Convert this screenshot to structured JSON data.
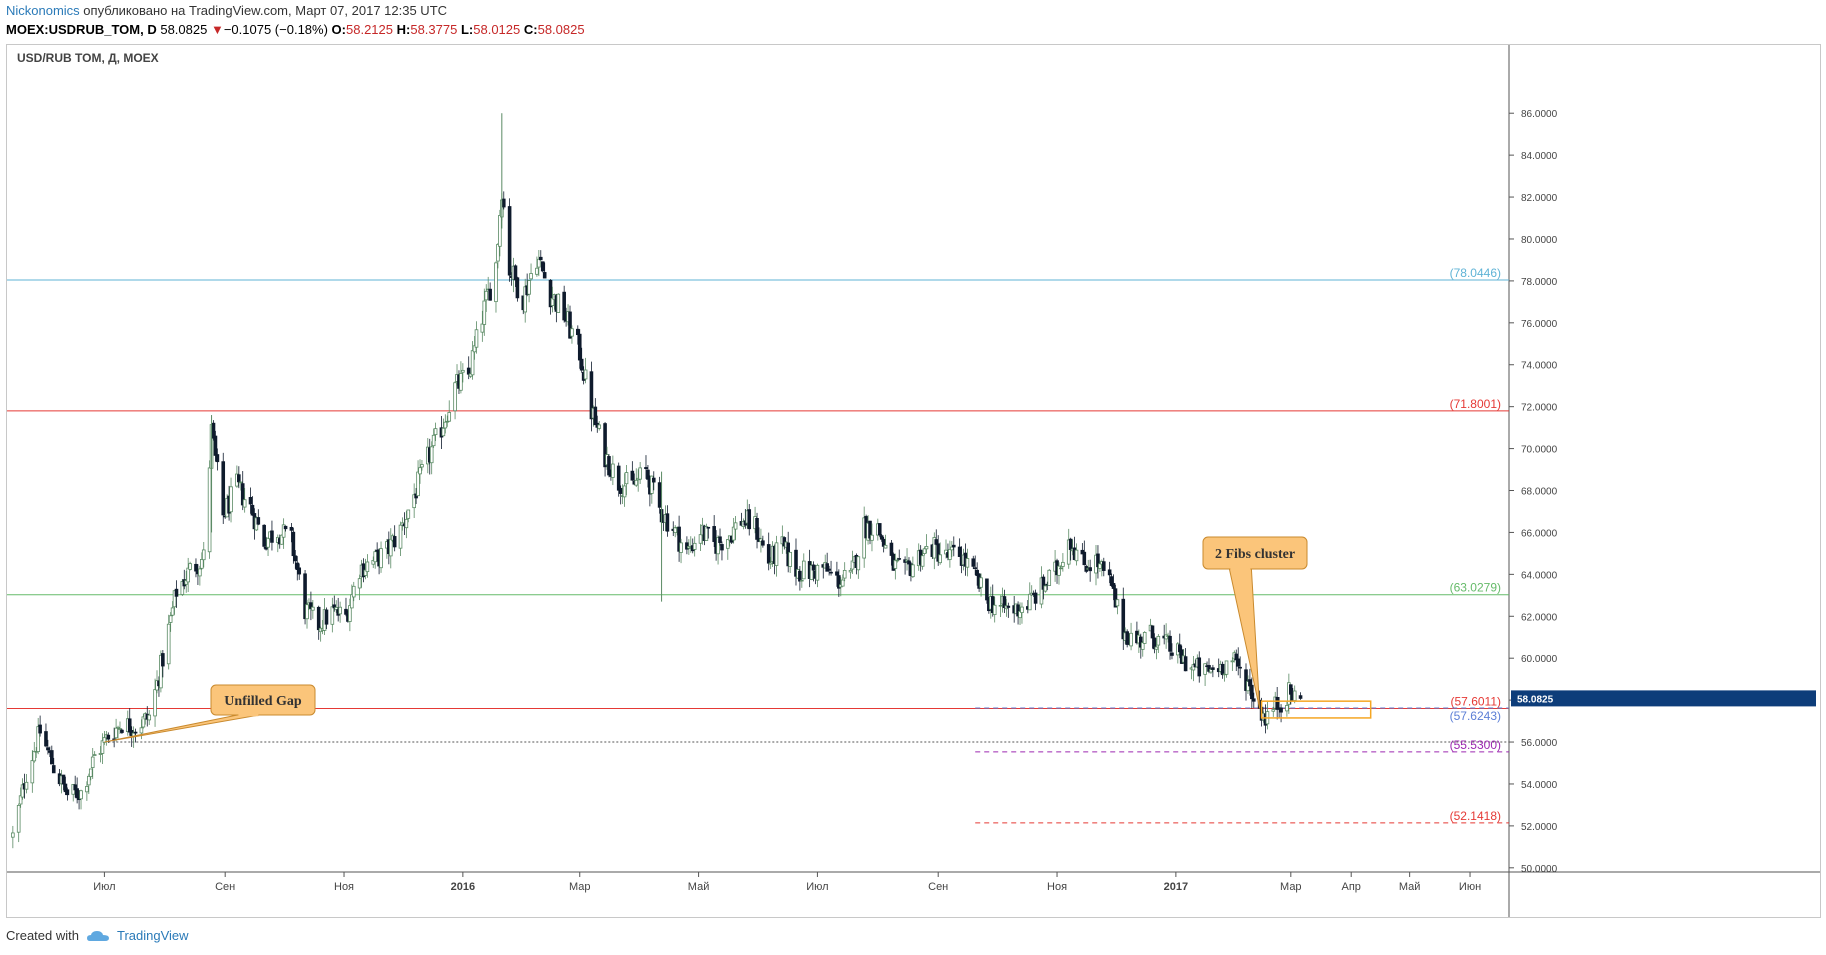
{
  "header": {
    "author": "Nickonomics",
    "published_text": " опубликовано на TradingView.com, Март 07, 2017 12:35 UTC",
    "symbol": "MOEX:USDRUB_TOM, D",
    "price": "58.0825",
    "change": "−0.1075 (−0.18%)",
    "o_label": "O:",
    "o_value": "58.2125",
    "h_label": "H:",
    "h_value": "58.3775",
    "l_label": "L:",
    "l_value": "58.0125",
    "c_label": "C:",
    "c_value": "58.0825",
    "arrow": "▼"
  },
  "footer": {
    "created_with": "Created with",
    "brand": "TradingView"
  },
  "chart_data": {
    "type": "candlestick",
    "title": "USD/RUB TOM, Д, MOEX",
    "y_axis_side": "right",
    "ylim": [
      49.8,
      88.3
    ],
    "y_ticks": [
      "50.0000",
      "52.0000",
      "54.0000",
      "56.0000",
      "58.0000",
      "60.0000",
      "62.0000",
      "64.0000",
      "66.0000",
      "68.0000",
      "70.0000",
      "72.0000",
      "74.0000",
      "76.0000",
      "78.0000",
      "80.0000",
      "82.0000",
      "84.0000",
      "86.0000"
    ],
    "x_ticks": [
      {
        "label": "Июл",
        "date": "2015-07-01",
        "bold": false
      },
      {
        "label": "Сен",
        "date": "2015-09-01",
        "bold": false
      },
      {
        "label": "Ноя",
        "date": "2015-11-01",
        "bold": false
      },
      {
        "label": "2016",
        "date": "2016-01-01",
        "bold": true
      },
      {
        "label": "Мар",
        "date": "2016-03-01",
        "bold": false
      },
      {
        "label": "Май",
        "date": "2016-05-01",
        "bold": false
      },
      {
        "label": "Июл",
        "date": "2016-07-01",
        "bold": false
      },
      {
        "label": "Сен",
        "date": "2016-09-01",
        "bold": false
      },
      {
        "label": "Ноя",
        "date": "2016-11-01",
        "bold": false
      },
      {
        "label": "2017",
        "date": "2017-01-01",
        "bold": true
      },
      {
        "label": "Мар",
        "date": "2017-03-01",
        "bold": false
      },
      {
        "label": "Апр",
        "date": "2017-04-01",
        "bold": false
      },
      {
        "label": "Май",
        "date": "2017-05-01",
        "bold": false
      },
      {
        "label": "Июн",
        "date": "2017-06-01",
        "bold": false
      }
    ],
    "last_price": {
      "value": 58.0825,
      "label": "58.0825",
      "color": "#0d3d7a"
    },
    "close_path": [
      {
        "date": "2015-05-15",
        "close": 51.5
      },
      {
        "date": "2015-05-22",
        "close": 54.5
      },
      {
        "date": "2015-05-29",
        "close": 56.5
      },
      {
        "date": "2015-06-05",
        "close": 54.8
      },
      {
        "date": "2015-06-12",
        "close": 53.5
      },
      {
        "date": "2015-06-19",
        "close": 53.6
      },
      {
        "date": "2015-06-26",
        "close": 55.3
      },
      {
        "date": "2015-07-03",
        "close": 56.3
      },
      {
        "date": "2015-07-10",
        "close": 56.9
      },
      {
        "date": "2015-07-17",
        "close": 56.7
      },
      {
        "date": "2015-07-24",
        "close": 57.2
      },
      {
        "date": "2015-07-31",
        "close": 60.0
      },
      {
        "date": "2015-08-07",
        "close": 63.2
      },
      {
        "date": "2015-08-14",
        "close": 64.2
      },
      {
        "date": "2015-08-21",
        "close": 64.8
      },
      {
        "date": "2015-08-25",
        "close": 70.8
      },
      {
        "date": "2015-08-31",
        "close": 66.8
      },
      {
        "date": "2015-09-07",
        "close": 68.2
      },
      {
        "date": "2015-09-14",
        "close": 67.2
      },
      {
        "date": "2015-09-21",
        "close": 65.6
      },
      {
        "date": "2015-09-28",
        "close": 66.1
      },
      {
        "date": "2015-10-05",
        "close": 65.6
      },
      {
        "date": "2015-10-12",
        "close": 62.3
      },
      {
        "date": "2015-10-19",
        "close": 61.6
      },
      {
        "date": "2015-10-26",
        "close": 62.2
      },
      {
        "date": "2015-11-02",
        "close": 62.0
      },
      {
        "date": "2015-11-09",
        "close": 64.3
      },
      {
        "date": "2015-11-16",
        "close": 64.6
      },
      {
        "date": "2015-11-23",
        "close": 65.1
      },
      {
        "date": "2015-11-30",
        "close": 66.1
      },
      {
        "date": "2015-12-07",
        "close": 67.8
      },
      {
        "date": "2015-12-14",
        "close": 69.5
      },
      {
        "date": "2015-12-21",
        "close": 71.0
      },
      {
        "date": "2015-12-28",
        "close": 72.9
      },
      {
        "date": "2016-01-04",
        "close": 73.5
      },
      {
        "date": "2016-01-11",
        "close": 76.3
      },
      {
        "date": "2016-01-18",
        "close": 78.8
      },
      {
        "date": "2016-01-21",
        "close": 82.5
      },
      {
        "date": "2016-01-25",
        "close": 78.6
      },
      {
        "date": "2016-02-01",
        "close": 77.2
      },
      {
        "date": "2016-02-08",
        "close": 79.2
      },
      {
        "date": "2016-02-15",
        "close": 77.4
      },
      {
        "date": "2016-02-22",
        "close": 76.4
      },
      {
        "date": "2016-03-01",
        "close": 74.6
      },
      {
        "date": "2016-03-07",
        "close": 71.8
      },
      {
        "date": "2016-03-14",
        "close": 69.7
      },
      {
        "date": "2016-03-21",
        "close": 68.4
      },
      {
        "date": "2016-03-28",
        "close": 68.2
      },
      {
        "date": "2016-04-04",
        "close": 68.9
      },
      {
        "date": "2016-04-11",
        "close": 67.1
      },
      {
        "date": "2016-04-18",
        "close": 66.2
      },
      {
        "date": "2016-04-25",
        "close": 65.0
      },
      {
        "date": "2016-05-02",
        "close": 66.1
      },
      {
        "date": "2016-05-09",
        "close": 65.4
      },
      {
        "date": "2016-05-16",
        "close": 65.8
      },
      {
        "date": "2016-05-23",
        "close": 66.6
      },
      {
        "date": "2016-05-30",
        "close": 66.3
      },
      {
        "date": "2016-06-06",
        "close": 64.6
      },
      {
        "date": "2016-06-13",
        "close": 65.3
      },
      {
        "date": "2016-06-20",
        "close": 64.2
      },
      {
        "date": "2016-06-27",
        "close": 64.1
      },
      {
        "date": "2016-07-04",
        "close": 64.3
      },
      {
        "date": "2016-07-11",
        "close": 63.7
      },
      {
        "date": "2016-07-18",
        "close": 63.8
      },
      {
        "date": "2016-07-25",
        "close": 66.3
      },
      {
        "date": "2016-08-01",
        "close": 66.2
      },
      {
        "date": "2016-08-08",
        "close": 64.5
      },
      {
        "date": "2016-08-15",
        "close": 64.0
      },
      {
        "date": "2016-08-22",
        "close": 64.9
      },
      {
        "date": "2016-08-29",
        "close": 65.3
      },
      {
        "date": "2016-09-05",
        "close": 64.8
      },
      {
        "date": "2016-09-12",
        "close": 65.0
      },
      {
        "date": "2016-09-19",
        "close": 64.0
      },
      {
        "date": "2016-09-26",
        "close": 62.8
      },
      {
        "date": "2016-10-03",
        "close": 62.4
      },
      {
        "date": "2016-10-10",
        "close": 62.3
      },
      {
        "date": "2016-10-17",
        "close": 62.6
      },
      {
        "date": "2016-10-24",
        "close": 63.3
      },
      {
        "date": "2016-11-01",
        "close": 64.2
      },
      {
        "date": "2016-11-07",
        "close": 65.8
      },
      {
        "date": "2016-11-14",
        "close": 64.5
      },
      {
        "date": "2016-11-21",
        "close": 64.6
      },
      {
        "date": "2016-11-28",
        "close": 63.6
      },
      {
        "date": "2016-12-05",
        "close": 61.3
      },
      {
        "date": "2016-12-12",
        "close": 60.8
      },
      {
        "date": "2016-12-19",
        "close": 61.1
      },
      {
        "date": "2016-12-26",
        "close": 60.7
      },
      {
        "date": "2017-01-09",
        "close": 59.6
      },
      {
        "date": "2017-01-16",
        "close": 59.3
      },
      {
        "date": "2017-01-23",
        "close": 59.6
      },
      {
        "date": "2017-01-30",
        "close": 59.9
      },
      {
        "date": "2017-02-06",
        "close": 59.0
      },
      {
        "date": "2017-02-13",
        "close": 57.6
      },
      {
        "date": "2017-02-16",
        "close": 57.2
      },
      {
        "date": "2017-02-22",
        "close": 57.8
      },
      {
        "date": "2017-02-28",
        "close": 58.3
      },
      {
        "date": "2017-03-06",
        "close": 58.08
      }
    ],
    "spikes": [
      {
        "date": "2016-01-21",
        "high": 86.0,
        "low": 80.5
      },
      {
        "date": "2016-04-12",
        "high": 68.9,
        "low": 62.7
      },
      {
        "date": "2015-08-25",
        "high": 71.6,
        "low": 66.0
      }
    ],
    "levels": [
      {
        "value": 78.0446,
        "label": "(78.0446)",
        "color": "#5fb3d6",
        "style": "solid",
        "start": "full"
      },
      {
        "value": 71.8001,
        "label": "(71.8001)",
        "color": "#e53935",
        "style": "solid",
        "start": "full"
      },
      {
        "value": 63.0279,
        "label": "(63.0279)",
        "color": "#66bb6a",
        "style": "solid",
        "start": "full"
      },
      {
        "value": 57.6011,
        "label": "(57.6011)",
        "color": "#e53935",
        "style": "solid",
        "start": "full"
      },
      {
        "value": 57.6243,
        "label": "(57.6243)",
        "color": "#5c7fd6",
        "style": "dashed",
        "start": "2016-09-20"
      },
      {
        "value": 56.0,
        "label": "",
        "color": "#555555",
        "style": "dotted",
        "start": "2015-07-03"
      },
      {
        "value": 55.53,
        "label": "(55.5300)",
        "color": "#9c27b0",
        "style": "dashed",
        "start": "2016-09-20"
      },
      {
        "value": 52.1418,
        "label": "(52.1418)",
        "color": "#e53935",
        "style": "dashed",
        "start": "2016-09-20"
      }
    ],
    "annotations": [
      {
        "text": "Unfilled Gap",
        "anchor_date": "2015-07-01",
        "anchor_value": 56.0
      },
      {
        "text": "2 Fibs cluster",
        "anchor_date": "2017-02-13",
        "anchor_value": 57.6
      }
    ],
    "highlight_box": {
      "date_from": "2017-02-14",
      "date_to": "2017-04-11",
      "value_from": 57.15,
      "value_to": 57.95,
      "color": "#f5a623"
    }
  }
}
